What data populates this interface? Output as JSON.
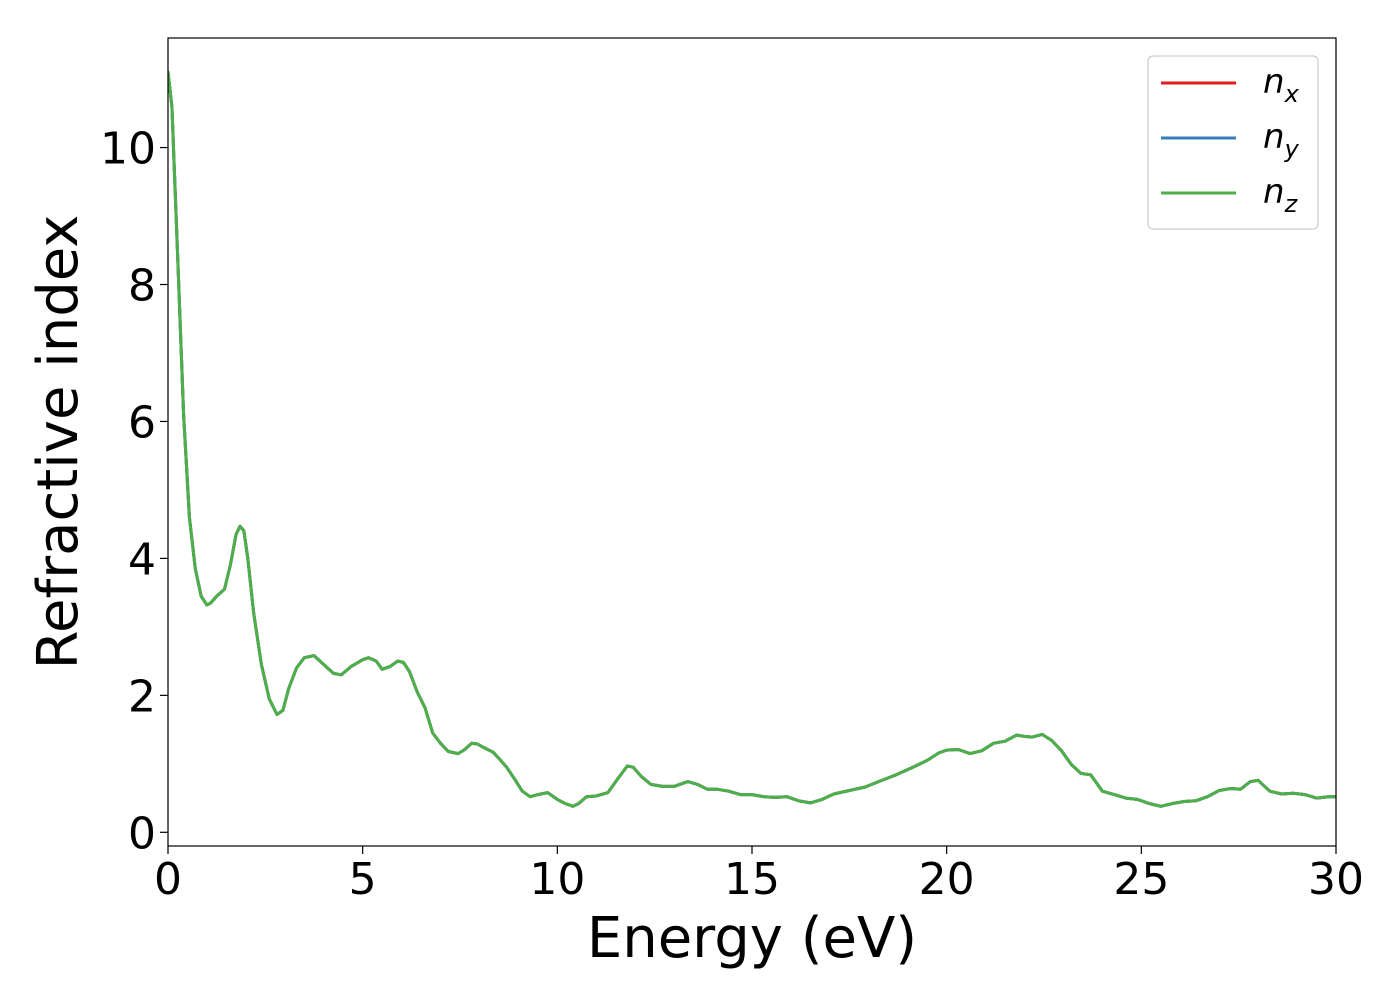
{
  "chart_data": {
    "type": "line",
    "title": "",
    "xlabel": "Energy (eV)",
    "ylabel": "Refractive index",
    "xlim": [
      0,
      30
    ],
    "ylim": [
      -0.2,
      11.6
    ],
    "xticks": [
      0,
      5,
      10,
      15,
      20,
      25,
      30
    ],
    "xtick_labels": [
      "0",
      "5",
      "10",
      "15",
      "20",
      "25",
      "30"
    ],
    "yticks": [
      0,
      2,
      4,
      6,
      8,
      10
    ],
    "ytick_labels": [
      "0",
      "2",
      "4",
      "6",
      "8",
      "10"
    ],
    "grid": false,
    "legend_position": "top-right",
    "x": [
      0,
      0.1,
      0.25,
      0.4,
      0.55,
      0.7,
      0.85,
      1.0,
      1.1,
      1.25,
      1.45,
      1.6,
      1.75,
      1.85,
      1.95,
      2.05,
      2.2,
      2.4,
      2.6,
      2.8,
      2.95,
      3.1,
      3.3,
      3.5,
      3.75,
      4.0,
      4.25,
      4.45,
      4.7,
      5.0,
      5.15,
      5.35,
      5.5,
      5.7,
      5.9,
      6.05,
      6.2,
      6.4,
      6.6,
      6.8,
      7.0,
      7.2,
      7.45,
      7.6,
      7.8,
      7.95,
      8.1,
      8.35,
      8.5,
      8.7,
      8.9,
      9.1,
      9.3,
      9.5,
      9.75,
      10.0,
      10.2,
      10.4,
      10.55,
      10.75,
      11.0,
      11.3,
      11.55,
      11.8,
      11.95,
      12.15,
      12.4,
      12.7,
      13.0,
      13.35,
      13.6,
      13.85,
      14.1,
      14.4,
      14.7,
      15.0,
      15.3,
      15.6,
      15.9,
      16.2,
      16.5,
      16.8,
      17.1,
      17.5,
      17.9,
      18.3,
      18.7,
      19.1,
      19.5,
      19.8,
      20.0,
      20.3,
      20.6,
      20.9,
      21.2,
      21.5,
      21.8,
      22.0,
      22.2,
      22.45,
      22.7,
      22.95,
      23.2,
      23.45,
      23.7,
      24.0,
      24.3,
      24.6,
      24.9,
      25.2,
      25.5,
      25.8,
      26.1,
      26.4,
      26.7,
      27.0,
      27.3,
      27.55,
      27.8,
      28.0,
      28.3,
      28.6,
      28.9,
      29.2,
      29.5,
      29.8,
      30.0
    ],
    "series": [
      {
        "name": "n_x",
        "legend_main": "n",
        "legend_sub": "x",
        "color": "#e41a1c",
        "values": [
          11.1,
          10.6,
          8.4,
          6.1,
          4.6,
          3.85,
          3.45,
          3.32,
          3.35,
          3.45,
          3.55,
          3.9,
          4.35,
          4.47,
          4.4,
          4.0,
          3.2,
          2.45,
          1.95,
          1.72,
          1.78,
          2.1,
          2.4,
          2.55,
          2.58,
          2.45,
          2.32,
          2.3,
          2.42,
          2.52,
          2.55,
          2.5,
          2.38,
          2.42,
          2.5,
          2.48,
          2.35,
          2.05,
          1.82,
          1.45,
          1.3,
          1.18,
          1.15,
          1.2,
          1.3,
          1.29,
          1.24,
          1.17,
          1.08,
          0.95,
          0.78,
          0.6,
          0.52,
          0.55,
          0.58,
          0.48,
          0.42,
          0.38,
          0.42,
          0.52,
          0.53,
          0.58,
          0.78,
          0.97,
          0.95,
          0.82,
          0.7,
          0.67,
          0.67,
          0.74,
          0.7,
          0.63,
          0.63,
          0.6,
          0.55,
          0.55,
          0.52,
          0.51,
          0.52,
          0.46,
          0.43,
          0.48,
          0.56,
          0.61,
          0.66,
          0.75,
          0.84,
          0.94,
          1.05,
          1.16,
          1.2,
          1.21,
          1.15,
          1.19,
          1.3,
          1.33,
          1.42,
          1.4,
          1.39,
          1.43,
          1.34,
          1.19,
          0.99,
          0.86,
          0.84,
          0.6,
          0.55,
          0.5,
          0.48,
          0.42,
          0.38,
          0.42,
          0.45,
          0.46,
          0.52,
          0.61,
          0.64,
          0.63,
          0.74,
          0.76,
          0.6,
          0.56,
          0.57,
          0.55,
          0.5,
          0.52,
          0.52
        ]
      },
      {
        "name": "n_y",
        "legend_main": "n",
        "legend_sub": "y",
        "color": "#377eb8",
        "values": [
          11.1,
          10.6,
          8.4,
          6.1,
          4.6,
          3.85,
          3.45,
          3.32,
          3.35,
          3.45,
          3.55,
          3.9,
          4.35,
          4.47,
          4.4,
          4.0,
          3.2,
          2.45,
          1.95,
          1.72,
          1.78,
          2.1,
          2.4,
          2.55,
          2.58,
          2.45,
          2.32,
          2.3,
          2.42,
          2.52,
          2.55,
          2.5,
          2.38,
          2.42,
          2.5,
          2.48,
          2.35,
          2.05,
          1.82,
          1.45,
          1.3,
          1.18,
          1.15,
          1.2,
          1.3,
          1.29,
          1.24,
          1.17,
          1.08,
          0.95,
          0.78,
          0.6,
          0.52,
          0.55,
          0.58,
          0.48,
          0.42,
          0.38,
          0.42,
          0.52,
          0.53,
          0.58,
          0.78,
          0.97,
          0.95,
          0.82,
          0.7,
          0.67,
          0.67,
          0.74,
          0.7,
          0.63,
          0.63,
          0.6,
          0.55,
          0.55,
          0.52,
          0.51,
          0.52,
          0.46,
          0.43,
          0.48,
          0.56,
          0.61,
          0.66,
          0.75,
          0.84,
          0.94,
          1.05,
          1.16,
          1.2,
          1.21,
          1.15,
          1.19,
          1.3,
          1.33,
          1.42,
          1.4,
          1.39,
          1.43,
          1.34,
          1.19,
          0.99,
          0.86,
          0.84,
          0.6,
          0.55,
          0.5,
          0.48,
          0.42,
          0.38,
          0.42,
          0.45,
          0.46,
          0.52,
          0.61,
          0.64,
          0.63,
          0.74,
          0.76,
          0.6,
          0.56,
          0.57,
          0.55,
          0.5,
          0.52,
          0.52
        ]
      },
      {
        "name": "n_z",
        "legend_main": "n",
        "legend_sub": "z",
        "color": "#4daf4a",
        "values": [
          11.1,
          10.6,
          8.4,
          6.1,
          4.6,
          3.85,
          3.45,
          3.32,
          3.35,
          3.45,
          3.55,
          3.9,
          4.35,
          4.47,
          4.4,
          4.0,
          3.2,
          2.45,
          1.95,
          1.72,
          1.78,
          2.1,
          2.4,
          2.55,
          2.58,
          2.45,
          2.32,
          2.3,
          2.42,
          2.52,
          2.55,
          2.5,
          2.38,
          2.42,
          2.5,
          2.48,
          2.35,
          2.05,
          1.82,
          1.45,
          1.3,
          1.18,
          1.15,
          1.2,
          1.3,
          1.29,
          1.24,
          1.17,
          1.08,
          0.95,
          0.78,
          0.6,
          0.52,
          0.55,
          0.58,
          0.48,
          0.42,
          0.38,
          0.42,
          0.52,
          0.53,
          0.58,
          0.78,
          0.97,
          0.95,
          0.82,
          0.7,
          0.67,
          0.67,
          0.74,
          0.7,
          0.63,
          0.63,
          0.6,
          0.55,
          0.55,
          0.52,
          0.51,
          0.52,
          0.46,
          0.43,
          0.48,
          0.56,
          0.61,
          0.66,
          0.75,
          0.84,
          0.94,
          1.05,
          1.16,
          1.2,
          1.21,
          1.15,
          1.19,
          1.3,
          1.33,
          1.42,
          1.4,
          1.39,
          1.43,
          1.34,
          1.19,
          0.99,
          0.86,
          0.84,
          0.6,
          0.55,
          0.5,
          0.48,
          0.42,
          0.38,
          0.42,
          0.45,
          0.46,
          0.52,
          0.61,
          0.64,
          0.63,
          0.74,
          0.76,
          0.6,
          0.56,
          0.57,
          0.55,
          0.5,
          0.52,
          0.52
        ]
      }
    ]
  }
}
